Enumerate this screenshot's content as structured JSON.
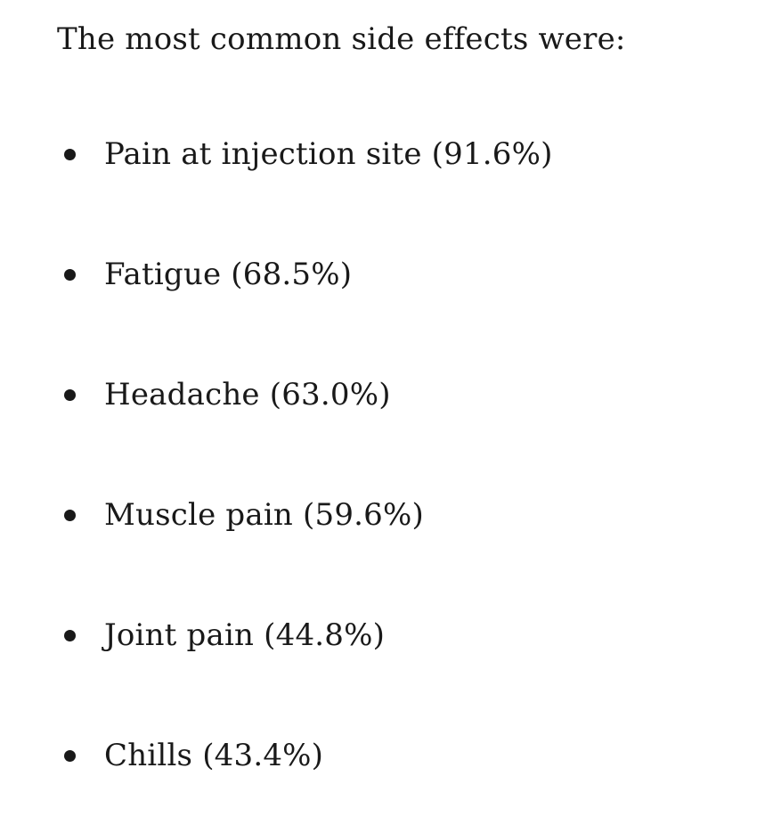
{
  "document": {
    "intro": "The most common side effects were:",
    "side_effects": [
      {
        "name": "Pain at injection site",
        "percent": "91.6%",
        "label": "Pain at injection site (91.6%)"
      },
      {
        "name": "Fatigue",
        "percent": "68.5%",
        "label": "Fatigue (68.5%)"
      },
      {
        "name": "Headache",
        "percent": "63.0%",
        "label": "Headache (63.0%)"
      },
      {
        "name": "Muscle pain",
        "percent": "59.6%",
        "label": "Muscle pain (59.6%)"
      },
      {
        "name": "Joint pain",
        "percent": "44.8%",
        "label": "Joint pain (44.8%)"
      },
      {
        "name": "Chills",
        "percent": "43.4%",
        "label": "Chills (43.4%)"
      }
    ]
  },
  "colors": {
    "text": "#191919",
    "background": "#ffffff"
  }
}
